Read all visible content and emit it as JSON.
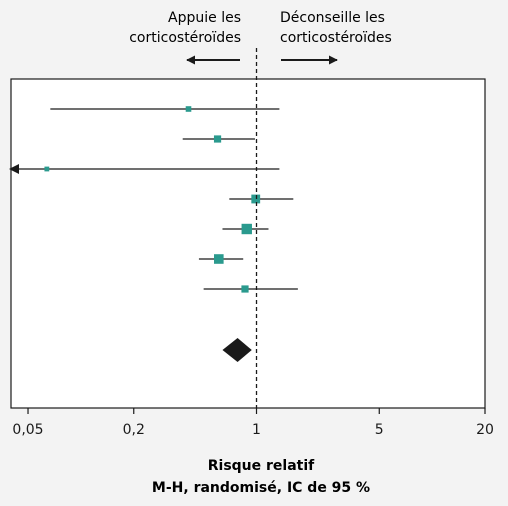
{
  "chart_data": {
    "type": "forest",
    "title": "",
    "xscale": "log",
    "xlim": [
      0.04,
      20
    ],
    "reference_line": 1,
    "x_ticks": [
      {
        "value": 0.05,
        "label": "0,05"
      },
      {
        "value": 0.2,
        "label": "0,2"
      },
      {
        "value": 1,
        "label": "1"
      },
      {
        "value": 5,
        "label": "5"
      },
      {
        "value": 20,
        "label": "20"
      }
    ],
    "xlabel_line1": "Risque relatif",
    "xlabel_line2": "M-H, randomisé, IC de 95 %",
    "direction_left_line1": "Appuie les",
    "direction_left_line2": "corticostéroïdes",
    "direction_right_line1": "Déconseille les",
    "direction_right_line2": "corticostéroïdes",
    "studies": [
      {
        "estimate": 0.41,
        "ci_low": 0.067,
        "ci_high": 1.35,
        "weight": 1
      },
      {
        "estimate": 0.6,
        "ci_low": 0.38,
        "ci_high": 0.98,
        "weight": 2
      },
      {
        "estimate": 0.064,
        "ci_low": 0.04,
        "ci_high": 1.35,
        "weight": 0.5,
        "ci_low_truncated": true
      },
      {
        "estimate": 0.99,
        "ci_low": 0.7,
        "ci_high": 1.62,
        "weight": 3
      },
      {
        "estimate": 0.88,
        "ci_low": 0.64,
        "ci_high": 1.17,
        "weight": 4
      },
      {
        "estimate": 0.61,
        "ci_low": 0.47,
        "ci_high": 0.84,
        "weight": 3.5
      },
      {
        "estimate": 0.86,
        "ci_low": 0.5,
        "ci_high": 1.72,
        "weight": 2
      }
    ],
    "pooled": {
      "estimate": 0.78,
      "ci_low": 0.64,
      "ci_high": 0.94
    },
    "colors": {
      "marker": "#2a9a8e",
      "pooled": "#1a1a1a",
      "line": "#1a1a1a",
      "plot_bg": "#ffffff",
      "page_bg": "#f3f3f3"
    }
  }
}
